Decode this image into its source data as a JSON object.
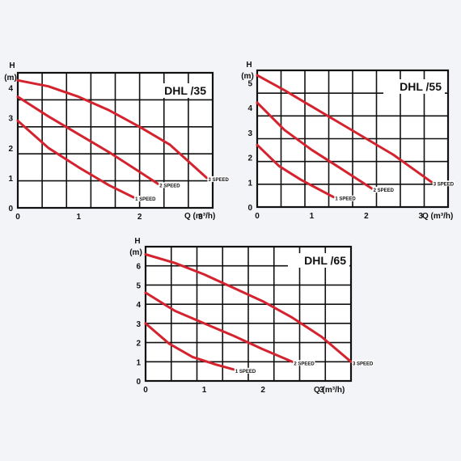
{
  "chart_data": [
    {
      "type": "line",
      "title": "DHL /35",
      "ylabel": "H",
      "ylabel_unit": "(m)",
      "xlabel": "Q (m³/h)",
      "xlim": [
        0,
        3.2
      ],
      "ylim": [
        0,
        4.5
      ],
      "xticks": [
        "0",
        "1",
        "2",
        "3"
      ],
      "yticks": [
        "0",
        "1",
        "2",
        "3",
        "4"
      ],
      "grid": true,
      "series": [
        {
          "name": "1 SPEED",
          "x": [
            0,
            0.5,
            1.0,
            1.5,
            1.9
          ],
          "y": [
            2.9,
            2.0,
            1.35,
            0.75,
            0.35
          ]
        },
        {
          "name": "2 SPEED",
          "x": [
            0,
            0.5,
            1.0,
            1.5,
            2.0,
            2.3
          ],
          "y": [
            3.7,
            3.05,
            2.45,
            1.85,
            1.2,
            0.8
          ]
        },
        {
          "name": "3 SPEED",
          "x": [
            0,
            0.5,
            1.0,
            1.5,
            2.0,
            2.5,
            3.1
          ],
          "y": [
            4.25,
            4.05,
            3.7,
            3.25,
            2.7,
            2.1,
            1.0
          ]
        }
      ],
      "colors": {
        "line": "#d4232e"
      }
    },
    {
      "type": "line",
      "title": "DHL /55",
      "ylabel": "H",
      "ylabel_unit": "(m)",
      "xlabel": "Q (m³/h)",
      "xlim": [
        0,
        3.5
      ],
      "ylim": [
        0,
        5.5
      ],
      "xticks": [
        "0",
        "1",
        "2",
        "3"
      ],
      "yticks": [
        "0",
        "1",
        "2",
        "3",
        "4",
        "5"
      ],
      "grid": true,
      "series": [
        {
          "name": "1 SPEED",
          "x": [
            0,
            0.4,
            0.8,
            1.1,
            1.4
          ],
          "y": [
            2.5,
            1.65,
            1.1,
            0.75,
            0.4
          ]
        },
        {
          "name": "2 SPEED",
          "x": [
            0,
            0.5,
            1.0,
            1.5,
            2.1
          ],
          "y": [
            4.2,
            3.1,
            2.3,
            1.6,
            0.75
          ]
        },
        {
          "name": "3 SPEED",
          "x": [
            0,
            0.5,
            1.0,
            1.5,
            2.0,
            2.5,
            3.2
          ],
          "y": [
            5.3,
            4.7,
            4.05,
            3.4,
            2.75,
            2.1,
            1.0
          ]
        }
      ],
      "colors": {
        "line": "#d4232e"
      }
    },
    {
      "type": "line",
      "title": "DHL /65",
      "ylabel": "H",
      "ylabel_unit": "(m)",
      "xlabel": "Q (m³/h)",
      "xlim": [
        0,
        3.5
      ],
      "ylim": [
        0,
        7
      ],
      "xticks": [
        "0",
        "1",
        "2",
        "3"
      ],
      "yticks": [
        "0",
        "1",
        "2",
        "3",
        "4",
        "5",
        "6"
      ],
      "grid": true,
      "series": [
        {
          "name": "1 SPEED",
          "x": [
            0,
            0.4,
            0.8,
            1.2,
            1.5
          ],
          "y": [
            3.0,
            1.95,
            1.25,
            0.85,
            0.6
          ]
        },
        {
          "name": "2 SPEED",
          "x": [
            0,
            0.5,
            1.0,
            1.5,
            2.0,
            2.5
          ],
          "y": [
            4.6,
            3.65,
            3.0,
            2.35,
            1.65,
            1.0
          ]
        },
        {
          "name": "3 SPEED",
          "x": [
            0,
            0.5,
            1.0,
            1.5,
            2.0,
            2.5,
            3.0,
            3.5
          ],
          "y": [
            6.6,
            6.15,
            5.55,
            4.85,
            4.15,
            3.3,
            2.3,
            1.0
          ]
        }
      ],
      "colors": {
        "line": "#d4232e"
      }
    }
  ]
}
